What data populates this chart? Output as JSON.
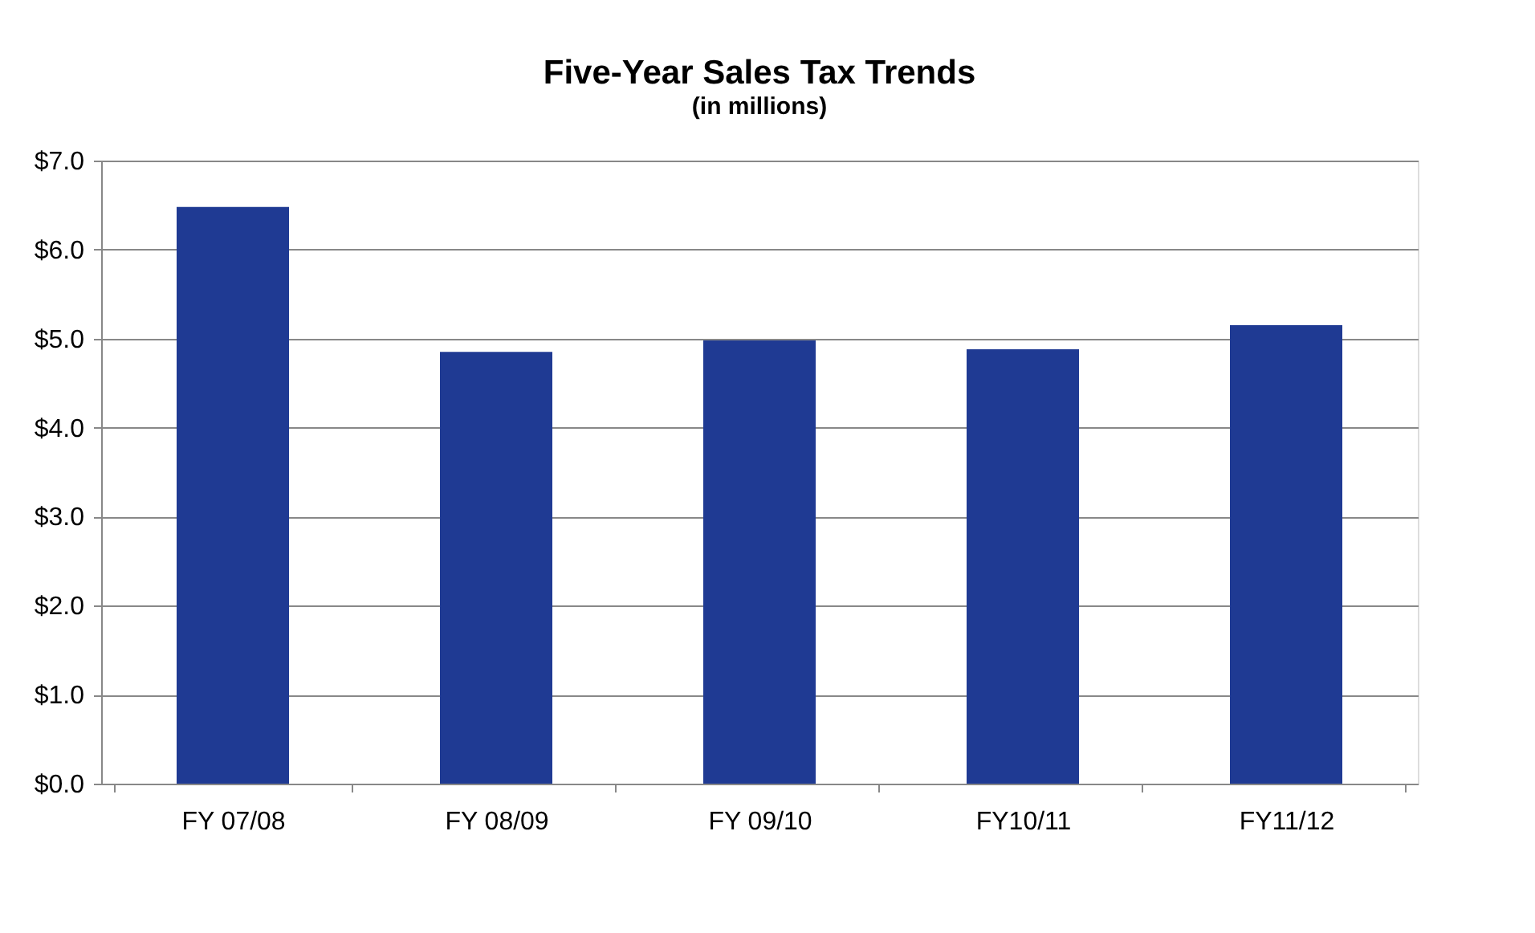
{
  "chart_data": {
    "type": "bar",
    "title": "Five-Year Sales Tax Trends",
    "subtitle": "(in millions)",
    "categories": [
      "FY 07/08",
      "FY 08/09",
      "FY 09/10",
      "FY10/11",
      "FY11/12"
    ],
    "values": [
      6.48,
      4.85,
      4.98,
      4.88,
      5.15
    ],
    "color": "#1f3a93",
    "ylim": [
      0,
      7
    ],
    "yticks": [
      {
        "value": 0,
        "label": "$0.0"
      },
      {
        "value": 1,
        "label": "$1.0"
      },
      {
        "value": 2,
        "label": "$2.0"
      },
      {
        "value": 3,
        "label": "$3.0"
      },
      {
        "value": 4,
        "label": "$4.0"
      },
      {
        "value": 5,
        "label": "$5.0"
      },
      {
        "value": 6,
        "label": "$6.0"
      },
      {
        "value": 7,
        "label": "$7.0"
      }
    ],
    "grid": "y"
  }
}
